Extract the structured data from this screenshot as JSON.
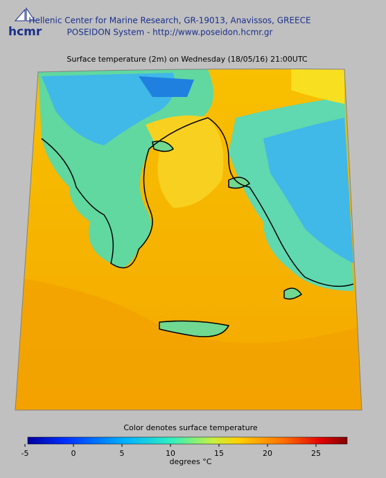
{
  "header": {
    "logo": "hcmr",
    "line1": "Hellenic Center for Marine Research, GR-19013, Anavissos, GREECE",
    "line2": "POSEIDON System - http://www.poseidon.hcmr.gr"
  },
  "map": {
    "title": "Surface temperature (2m) on Wednesday (18/05/16) 21:00UTC"
  },
  "colorbar": {
    "caption": "Color denotes surface temperature",
    "lim": [
      -5,
      28
    ],
    "ticks": [
      -5,
      0,
      5,
      10,
      15,
      20,
      25
    ],
    "unit_label": "degrees °C"
  }
}
